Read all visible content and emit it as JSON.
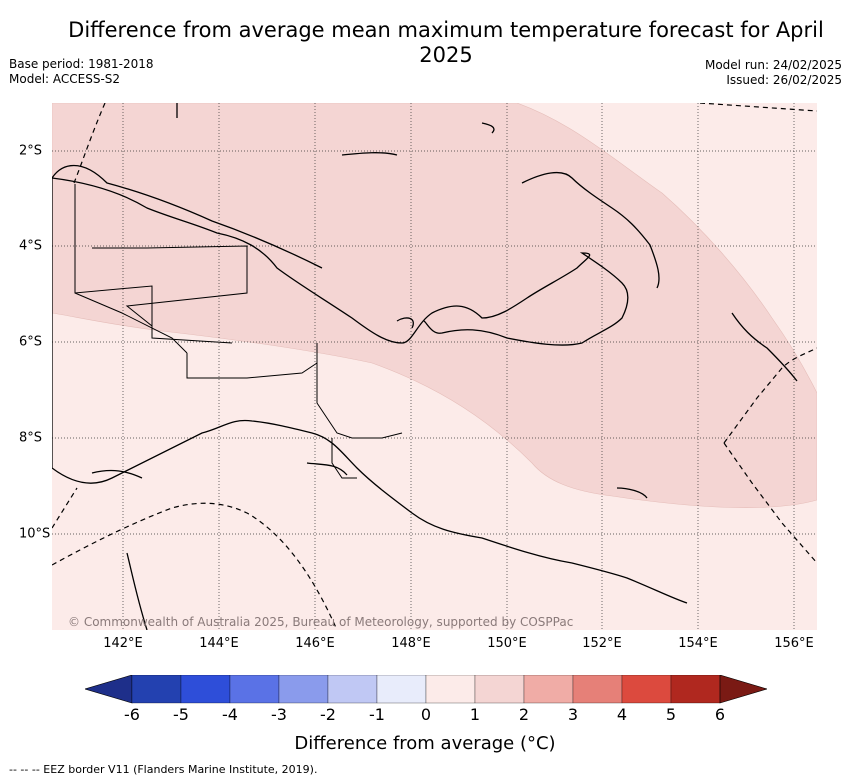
{
  "title": "Difference from average mean maximum temperature forecast for April 2025",
  "base_period": "Base period: 1981-2018",
  "model": "Model: ACCESS-S2",
  "model_run": "Model run: 24/02/2025",
  "issued": "Issued: 26/02/2025",
  "copyright": "© Commonwealth of Australia 2025, Bureau of Meteorology, supported by COSPPac",
  "lon_labels": [
    "142°E",
    "144°E",
    "146°E",
    "148°E",
    "150°E",
    "152°E",
    "154°E",
    "156°E"
  ],
  "lat_labels": [
    "2°S",
    "4°S",
    "6°S",
    "8°S",
    "10°S"
  ],
  "colorbar": {
    "ticks": [
      "-6",
      "-5",
      "-4",
      "-3",
      "-2",
      "-1",
      "0",
      "1",
      "2",
      "3",
      "4",
      "5",
      "6"
    ],
    "label": "Difference from average (°C)",
    "colors": [
      "#1e2f8a",
      "#2341b0",
      "#2e4ed9",
      "#5a72e6",
      "#8a9bec",
      "#c0c8f4",
      "#e8ecfb",
      "#fcebe9",
      "#f4d5d3",
      "#f0aca6",
      "#e68078",
      "#dc4a3e",
      "#b0281f",
      "#7a1a14"
    ]
  },
  "map_fills": {
    "low": "#fcebe9",
    "high": "#f4d5d3"
  },
  "eez_note": "--  --  -- EEZ border V11 (Flanders Marine Institute, 2019)."
}
